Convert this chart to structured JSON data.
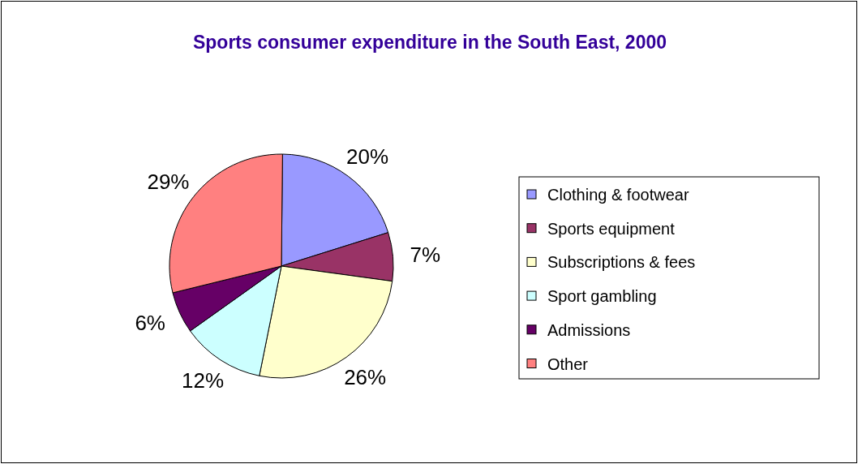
{
  "chart_data": {
    "type": "pie",
    "title": "Sports consumer expenditure in the South East, 2000",
    "categories": [
      "Clothing & footwear",
      "Sports equipment",
      "Subscriptions & fees",
      "Sport gambling",
      "Admissions",
      "Other"
    ],
    "values": [
      20,
      7,
      26,
      12,
      6,
      29
    ],
    "value_labels": [
      "20%",
      "7%",
      "26%",
      "12%",
      "6%",
      "29%"
    ],
    "colors": [
      "#9999ff",
      "#993366",
      "#ffffcc",
      "#ccffff",
      "#660066",
      "#ff8080"
    ],
    "legend": "right"
  }
}
